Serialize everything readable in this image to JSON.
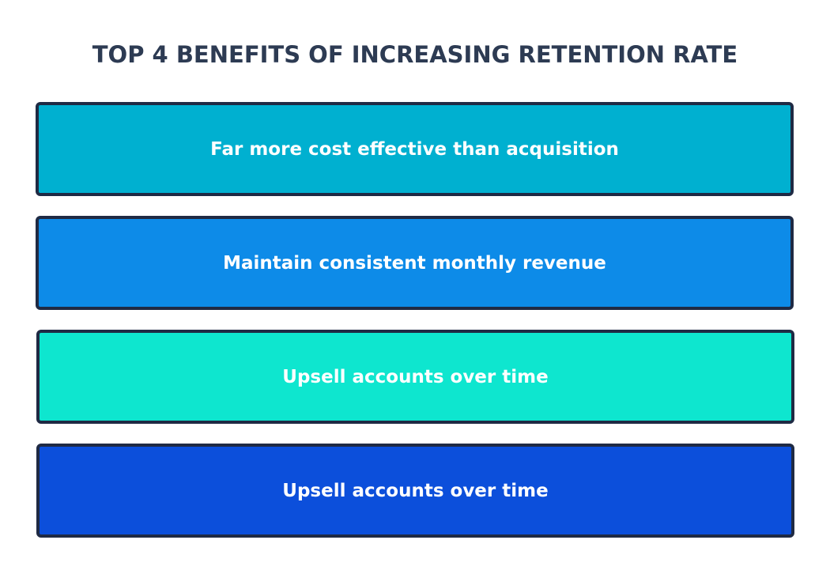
{
  "title": "TOP 4 BENEFITS OF INCREASING RETENTION RATE",
  "benefits": [
    {
      "label": "Far more cost effective than acquisition",
      "color": "#00b0d0"
    },
    {
      "label": "Maintain consistent monthly revenue",
      "color": "#0d8be8"
    },
    {
      "label": "Upsell accounts over time",
      "color": "#0ee6cf"
    },
    {
      "label": "Upsell accounts over time",
      "color": "#0c4fdb"
    }
  ],
  "colors": {
    "title": "#2d3b53",
    "border": "#1f2a44",
    "text": "#ffffff",
    "background": "#ffffff"
  }
}
